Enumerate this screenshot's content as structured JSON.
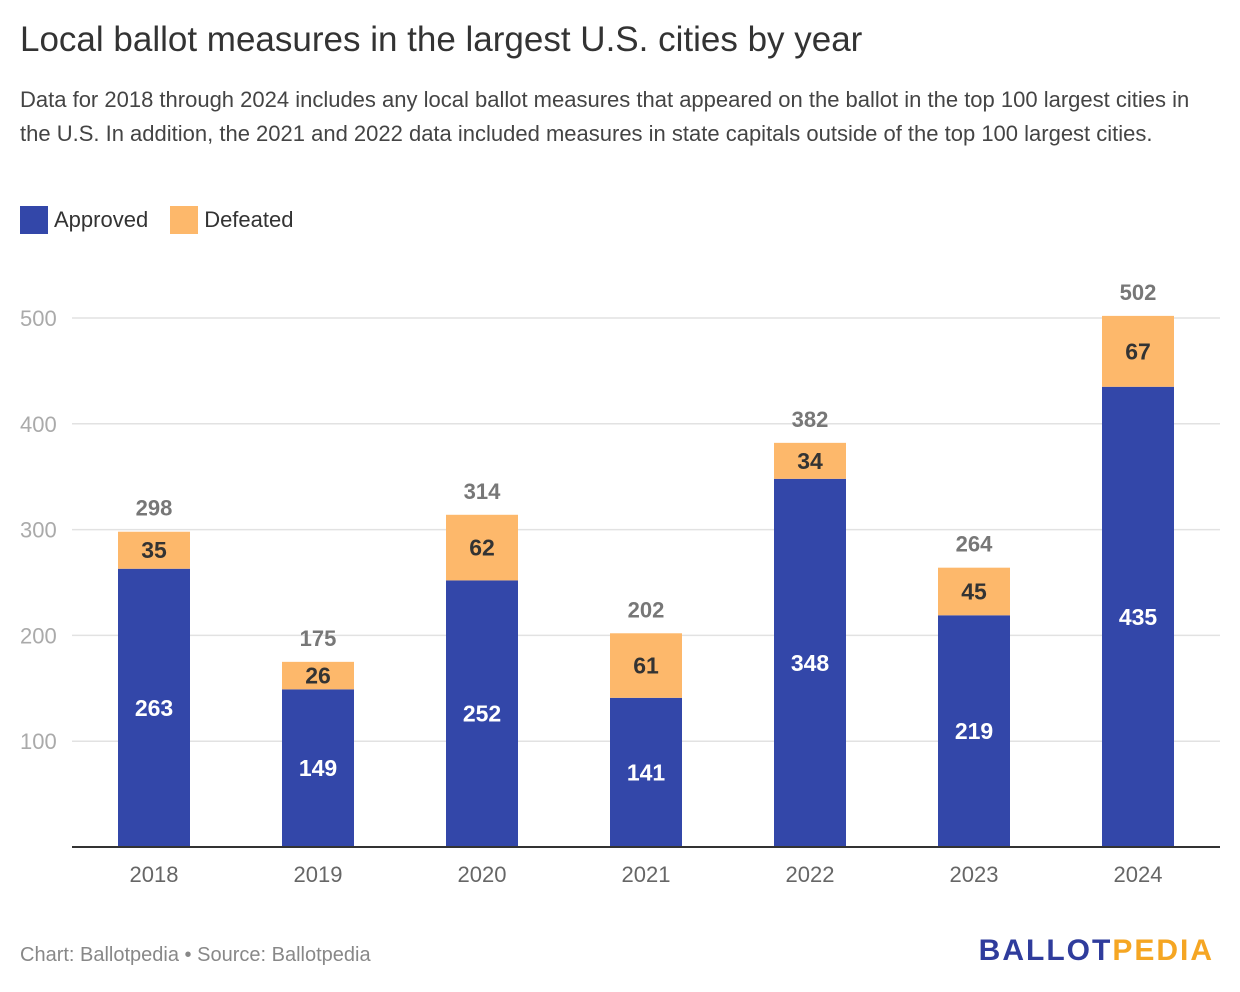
{
  "header": {
    "title": "Local ballot measures in the largest U.S. cities by year",
    "subtitle": "Data for 2018 through 2024 includes any local ballot measures that appeared on the ballot in the top 100 largest cities in the U.S. In addition, the 2021 and 2022 data included measures in state capitals outside of the top 100 largest cities."
  },
  "legend": {
    "approved": "Approved",
    "defeated": "Defeated"
  },
  "footer": {
    "credit": "Chart: Ballotpedia",
    "separator": "•",
    "source": "Source: Ballotpedia"
  },
  "logo": {
    "part1": "BALLOT",
    "part2": "PEDIA"
  },
  "colors": {
    "approved": "#3347a9",
    "defeated": "#fdb86b"
  },
  "chart_data": {
    "type": "bar",
    "stacked": true,
    "categories": [
      "2018",
      "2019",
      "2020",
      "2021",
      "2022",
      "2023",
      "2024"
    ],
    "series": [
      {
        "name": "Approved",
        "values": [
          263,
          149,
          252,
          141,
          348,
          219,
          435
        ]
      },
      {
        "name": "Defeated",
        "values": [
          35,
          26,
          62,
          61,
          34,
          45,
          67
        ]
      }
    ],
    "totals": [
      298,
      175,
      314,
      202,
      382,
      264,
      502
    ],
    "ylim": [
      0,
      500
    ],
    "yticks": [
      100,
      200,
      300,
      400,
      500
    ],
    "grid": true,
    "legend_position": "top-left"
  }
}
